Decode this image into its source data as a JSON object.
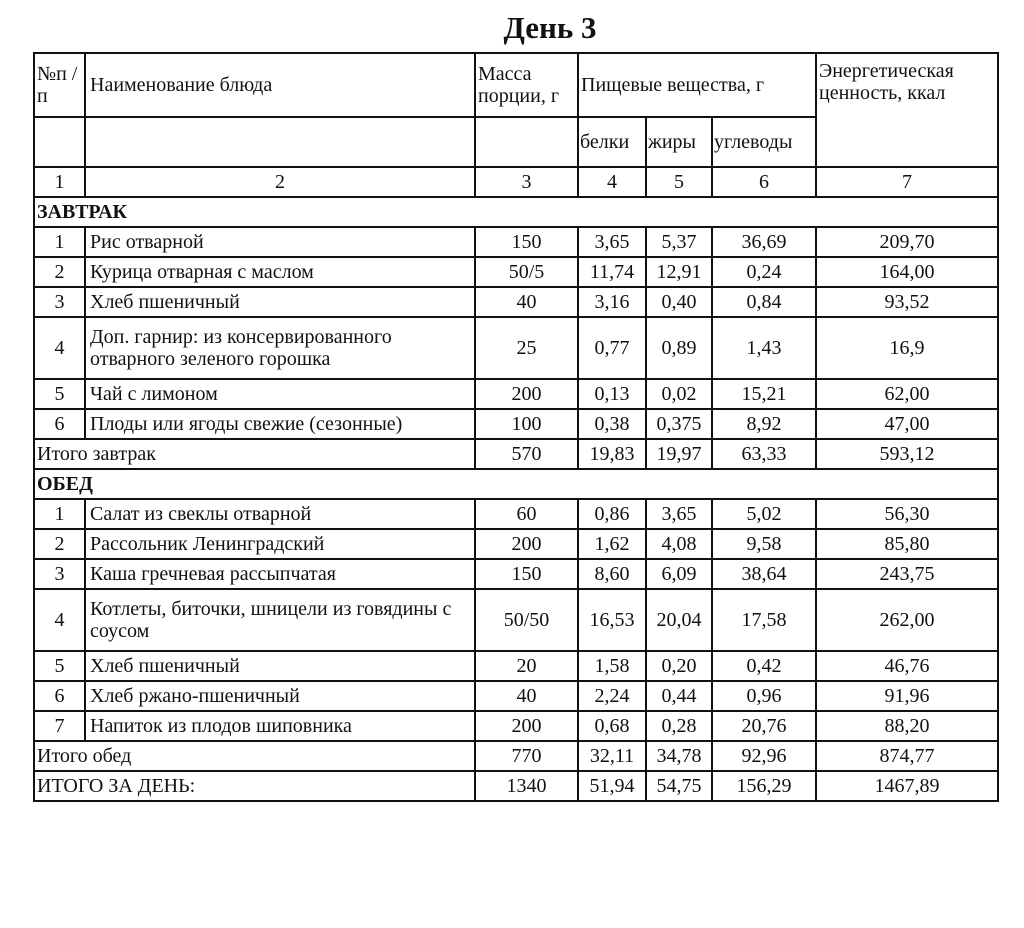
{
  "title": "День 3",
  "header": {
    "num": "№п /п",
    "name": "Наименование блюда",
    "mass": "Масса порции, г",
    "nutrients": "Пищевые вещества, г",
    "protein": "белки",
    "fat": "жиры",
    "carbs": "углеводы",
    "energy": "Энергетическая ценность, ккал",
    "col_numbers": [
      "1",
      "2",
      "3",
      "4",
      "5",
      "6",
      "7"
    ]
  },
  "sections": [
    {
      "title": "ЗАВТРАК",
      "rows": [
        {
          "n": "1",
          "name": "Рис отварной",
          "mass": "150",
          "p": "3,65",
          "f": "5,37",
          "c": "36,69",
          "e": "209,70"
        },
        {
          "n": "2",
          "name": "Курица отварная с маслом",
          "mass": "50/5",
          "p": "11,74",
          "f": "12,91",
          "c": "0,24",
          "e": "164,00"
        },
        {
          "n": "3",
          "name": "Хлеб пшеничный",
          "mass": "40",
          "p": "3,16",
          "f": "0,40",
          "c": "0,84",
          "e": "93,52"
        },
        {
          "n": "4",
          "name": "Доп. гарнир: из консервированного отварного зеленого горошка",
          "mass": "25",
          "p": "0,77",
          "f": "0,89",
          "c": "1,43",
          "e": "16,9"
        },
        {
          "n": "5",
          "name": "Чай с лимоном",
          "mass": "200",
          "p": "0,13",
          "f": "0,02",
          "c": "15,21",
          "e": "62,00"
        },
        {
          "n": "6",
          "name": "Плоды или ягоды свежие (сезонные)",
          "mass": "100",
          "p": "0,38",
          "f": "0,375",
          "c": "8,92",
          "e": "47,00"
        }
      ],
      "total": {
        "label": "Итого завтрак",
        "mass": "570",
        "p": "19,83",
        "f": "19,97",
        "c": "63,33",
        "e": "593,12"
      }
    },
    {
      "title": "ОБЕД",
      "rows": [
        {
          "n": "1",
          "name": "Салат из свеклы отварной",
          "mass": "60",
          "p": "0,86",
          "f": "3,65",
          "c": "5,02",
          "e": "56,30"
        },
        {
          "n": "2",
          "name": "Рассольник Ленинградский",
          "mass": "200",
          "p": "1,62",
          "f": "4,08",
          "c": "9,58",
          "e": "85,80"
        },
        {
          "n": "3",
          "name": "Каша гречневая рассыпчатая",
          "mass": "150",
          "p": "8,60",
          "f": "6,09",
          "c": "38,64",
          "e": "243,75"
        },
        {
          "n": "4",
          "name": "Котлеты, биточки, шницели из говядины с соусом",
          "mass": "50/50",
          "p": "16,53",
          "f": "20,04",
          "c": "17,58",
          "e": "262,00"
        },
        {
          "n": "5",
          "name": "Хлеб пшеничный",
          "mass": "20",
          "p": "1,58",
          "f": "0,20",
          "c": "0,42",
          "e": "46,76"
        },
        {
          "n": "6",
          "name": "Хлеб ржано-пшеничный",
          "mass": "40",
          "p": "2,24",
          "f": "0,44",
          "c": "0,96",
          "e": "91,96"
        },
        {
          "n": "7",
          "name": "Напиток из плодов шиповника",
          "mass": "200",
          "p": "0,68",
          "f": "0,28",
          "c": "20,76",
          "e": "88,20"
        }
      ],
      "total": {
        "label": "Итого обед",
        "mass": "770",
        "p": "32,11",
        "f": "34,78",
        "c": "92,96",
        "e": "874,77"
      }
    }
  ],
  "grand_total": {
    "label": "ИТОГО ЗА ДЕНЬ:",
    "mass": "1340",
    "p": "51,94",
    "f": "54,75",
    "c": "156,29",
    "e": "1467,89"
  }
}
